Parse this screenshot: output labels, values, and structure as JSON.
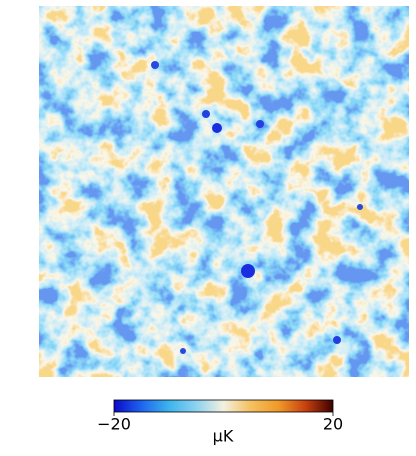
{
  "chart_data": {
    "type": "heatmap",
    "colorbar_label": "μK",
    "clim": [
      -20,
      20
    ],
    "colorbar_ticks": [
      {
        "value": -20,
        "label": "−20"
      },
      20
    ],
    "colormap": [
      "#0a0ac8",
      "#1e64f0",
      "#3cb4ec",
      "#8cd2f0",
      "#f4f0e0",
      "#f4c060",
      "#f09a28",
      "#c84010",
      "#3c0000"
    ]
  }
}
